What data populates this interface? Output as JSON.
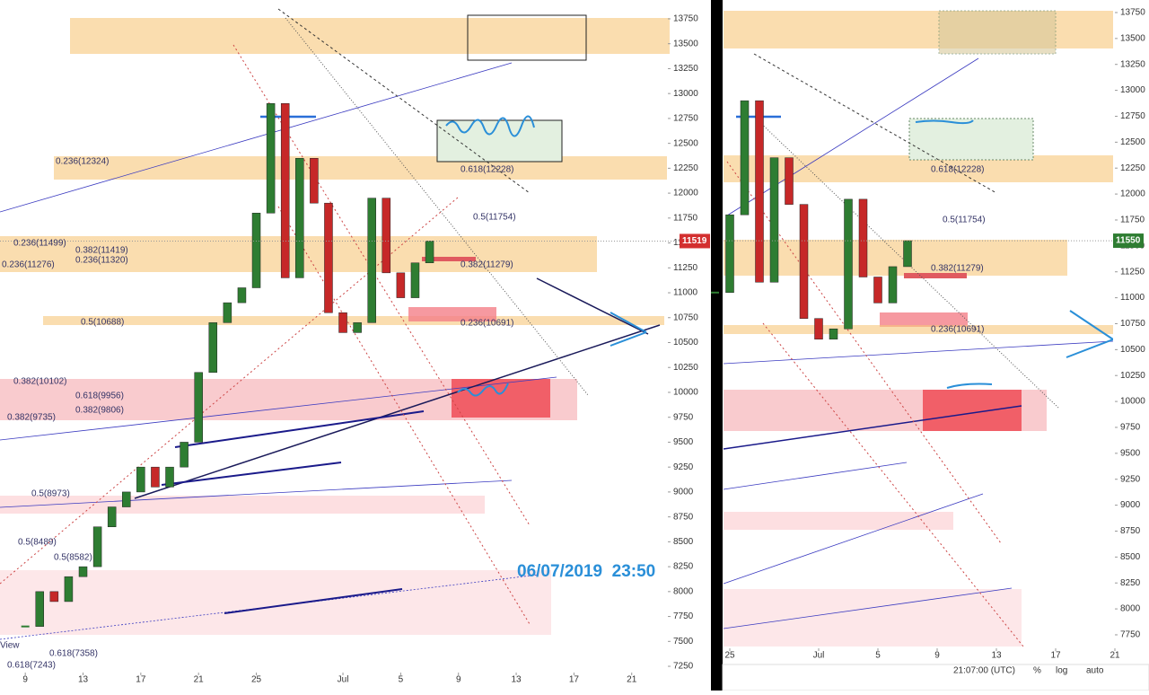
{
  "chart_data": [
    {
      "type": "candlestick",
      "x": [
        "2019-06-09",
        "2019-06-10",
        "2019-06-11",
        "2019-06-12",
        "2019-06-13",
        "2019-06-14",
        "2019-06-15",
        "2019-06-16",
        "2019-06-17",
        "2019-06-18",
        "2019-06-19",
        "2019-06-20",
        "2019-06-21",
        "2019-06-22",
        "2019-06-23",
        "2019-06-24",
        "2019-06-25",
        "2019-06-26",
        "2019-06-27",
        "2019-06-28",
        "2019-06-29",
        "2019-06-30",
        "2019-07-01",
        "2019-07-02",
        "2019-07-03",
        "2019-07-04",
        "2019-07-05",
        "2019-07-06",
        "2019-07-07"
      ],
      "values": [
        7650,
        8000,
        7900,
        8150,
        8250,
        8650,
        8850,
        9000,
        9250,
        9050,
        9250,
        9500,
        10200,
        10700,
        10900,
        11050,
        11800,
        12900,
        11150,
        12350,
        11900,
        10800,
        10600,
        10700,
        11950,
        11200,
        10950,
        11300,
        11519
      ],
      "colors": {
        "up": "#2e7d32",
        "down": "#c62828"
      },
      "xlim": [
        "2019-06-07",
        "2019-07-24"
      ],
      "xticks": [
        {
          "value": "2019-06-09",
          "label": "9"
        },
        {
          "value": "2019-06-13",
          "label": "13"
        },
        {
          "value": "2019-06-17",
          "label": "17"
        },
        {
          "value": "2019-06-21",
          "label": "21"
        },
        {
          "value": "2019-06-25",
          "label": "25"
        },
        {
          "value": "2019-07-01",
          "label": "Jul"
        },
        {
          "value": "2019-07-05",
          "label": "5"
        },
        {
          "value": "2019-07-09",
          "label": "9"
        },
        {
          "value": "2019-07-13",
          "label": "13"
        },
        {
          "value": "2019-07-17",
          "label": "17"
        },
        {
          "value": "2019-07-21",
          "label": "21"
        }
      ],
      "ylim": [
        7007,
        13939
      ],
      "yticks": [
        7250,
        7500,
        7750,
        8000,
        8250,
        8500,
        8750,
        9000,
        9250,
        9500,
        9750,
        10000,
        10250,
        10500,
        10750,
        11000,
        11250,
        11500,
        11750,
        12000,
        12250,
        12500,
        12750,
        13000,
        13250,
        13500,
        13750
      ],
      "last_price": 11519,
      "annotations": [
        "0.236(12324)",
        "0.618(12228)",
        "0.5(11754)",
        "0.236(11499)",
        "0.382(11419)",
        "0.236(11320)",
        "0.236(11276)",
        "0.382(11279)",
        "0.5(10688)",
        "0.236(10691)",
        "0.382(10102)",
        "0.618(9956)",
        "0.382(9806)",
        "0.382(9735)",
        "0.5(8973)",
        "0.5(8582)",
        "0.5(8489)",
        "0.618(7358)",
        "0.618(7243)",
        "View"
      ],
      "timestamp": "06/07/2019  23:50"
    },
    {
      "type": "candlestick",
      "x": [
        "2019-06-24",
        "2019-06-25",
        "2019-06-26",
        "2019-06-27",
        "2019-06-28",
        "2019-06-29",
        "2019-06-30",
        "2019-07-01",
        "2019-07-02",
        "2019-07-03",
        "2019-07-04",
        "2019-07-05",
        "2019-07-06",
        "2019-07-07"
      ],
      "values": [
        11050,
        11800,
        12900,
        11150,
        12350,
        11900,
        10800,
        10600,
        10700,
        11950,
        11200,
        10950,
        11300,
        11550
      ],
      "colors": {
        "up": "#2e7d32",
        "down": "#c62828"
      },
      "xlim": [
        "2019-06-24",
        "2019-07-23"
      ],
      "xticks": [
        {
          "value": "2019-06-25",
          "label": "25"
        },
        {
          "value": "2019-07-01",
          "label": "Jul"
        },
        {
          "value": "2019-07-05",
          "label": "5"
        },
        {
          "value": "2019-07-09",
          "label": "9"
        },
        {
          "value": "2019-07-13",
          "label": "13"
        },
        {
          "value": "2019-07-17",
          "label": "17"
        },
        {
          "value": "2019-07-21",
          "label": "21"
        }
      ],
      "ylim": [
        7464,
        13871
      ],
      "yticks": [
        7750,
        8000,
        8250,
        8500,
        8750,
        9000,
        9250,
        9500,
        9750,
        10000,
        10250,
        10500,
        10750,
        11000,
        11250,
        11500,
        11750,
        12000,
        12250,
        12500,
        12750,
        13000,
        13250,
        13500,
        13750
      ],
      "last_price": 11550,
      "annotations": [
        "0.618(12228)",
        "0.5(11754)",
        "0.382(11279)",
        "0.236(10691)"
      ],
      "toolbar": [
        "21:07:00 (UTC)",
        "%",
        "log",
        "auto"
      ]
    }
  ]
}
